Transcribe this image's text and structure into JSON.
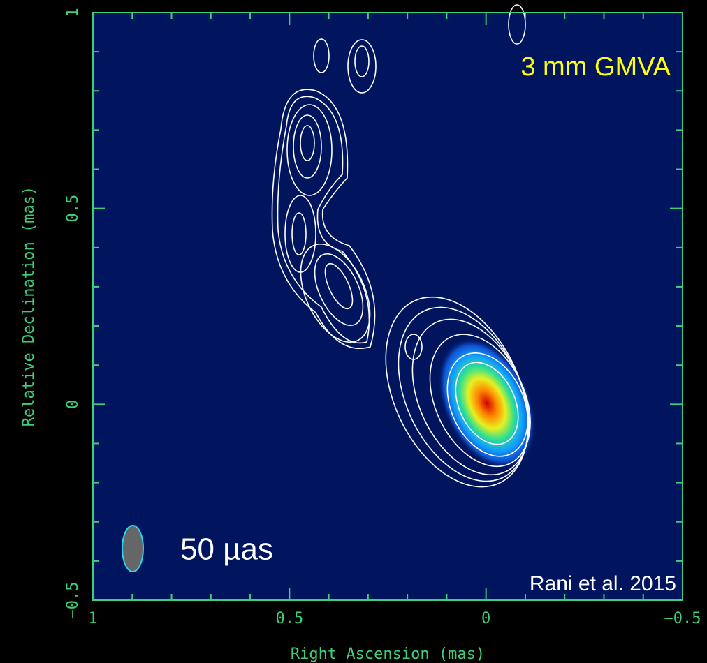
{
  "chart_data": {
    "type": "contour",
    "xlabel": "Right Ascension  (mas)",
    "ylabel": "Relative Declination  (mas)",
    "xlim": [
      1,
      -0.5
    ],
    "ylim": [
      -0.5,
      1
    ],
    "xticks": [
      1,
      0.5,
      0,
      {
        "value": -0.5,
        "label": "−0.5"
      }
    ],
    "yticks": [
      {
        "value": -0.5,
        "label": "−0.5"
      },
      0,
      0.5,
      1
    ],
    "xminorticks": [
      0.9,
      0.8,
      0.7,
      0.6,
      0.4,
      0.3,
      0.2,
      0.1,
      -0.1,
      -0.2,
      -0.3,
      -0.4
    ],
    "yminorticks": [
      -0.4,
      -0.3,
      -0.2,
      -0.1,
      0.1,
      0.2,
      0.3,
      0.4,
      0.6,
      0.7,
      0.8,
      0.9
    ],
    "axis_color": "#3fcf7a",
    "annotations": [
      "3 mm GMVA",
      "50 µas",
      "Rani et al. 2015"
    ]
  }
}
